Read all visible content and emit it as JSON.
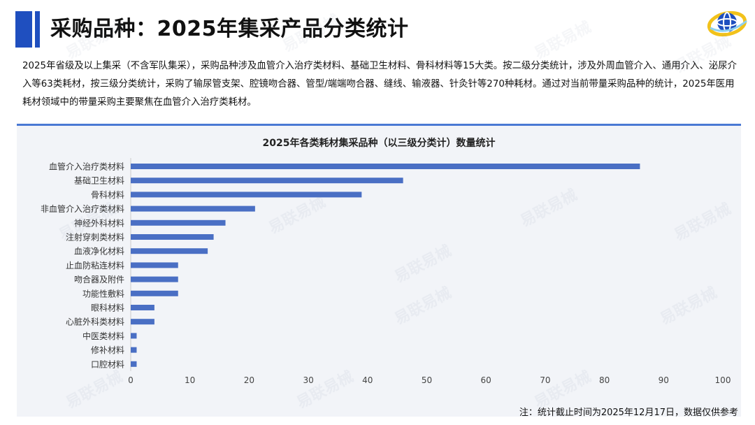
{
  "colors": {
    "accent": "#1f4fbf",
    "accent_light": "#4a79d4",
    "bar": "#4a6fc4",
    "panel": "#f2f4f8",
    "axis": "#cccccc"
  },
  "header": {
    "title": "采购品种：2025年集采产品分类统计",
    "logo_icon": "globe-ring-logo-icon"
  },
  "intro": {
    "text": "2025年省级及以上集采（不含军队集采），采购品种涉及血管介入治疗类材料、基础卫生材料、骨科材料等15大类。按二级分类统计，涉及外周血管介入、通用介入、泌尿介入等63类耗材，按三级分类统计，采购了输尿管支架、腔镜吻合器、管型/端端吻合器、缝线、输液器、针灸针等270种耗材。通过对当前带量采购品种的统计，2025年医用耗材领域中的带量采购主要聚焦在血管介入治疗类耗材。"
  },
  "watermark": {
    "text": "易联易械"
  },
  "chart_data": {
    "type": "bar",
    "orientation": "horizontal",
    "title": "2025年各类耗材集采品种（以三级分类计）数量统计",
    "categories": [
      "血管介入治疗类材料",
      "基础卫生材料",
      "骨科材料",
      "非血管介入治疗类材料",
      "神经外科材料",
      "注射穿刺类材料",
      "血液净化材料",
      "止血防粘连材料",
      "吻合器及附件",
      "功能性敷料",
      "眼科材料",
      "心脏外科类材料",
      "中医类材料",
      "修补材料",
      "口腔材料"
    ],
    "values": [
      86,
      46,
      39,
      21,
      16,
      14,
      13,
      8,
      8,
      8,
      4,
      4,
      1,
      1,
      1
    ],
    "xlim": [
      0,
      100
    ],
    "xticks": [
      "0",
      "10",
      "20",
      "30",
      "40",
      "50",
      "60",
      "70",
      "80",
      "90",
      "100"
    ],
    "xlabel": "",
    "ylabel": "",
    "grid": false,
    "legend": "none"
  },
  "footer": {
    "note": "注：统计截止时间为2025年12月17日，数据仅供参考"
  }
}
